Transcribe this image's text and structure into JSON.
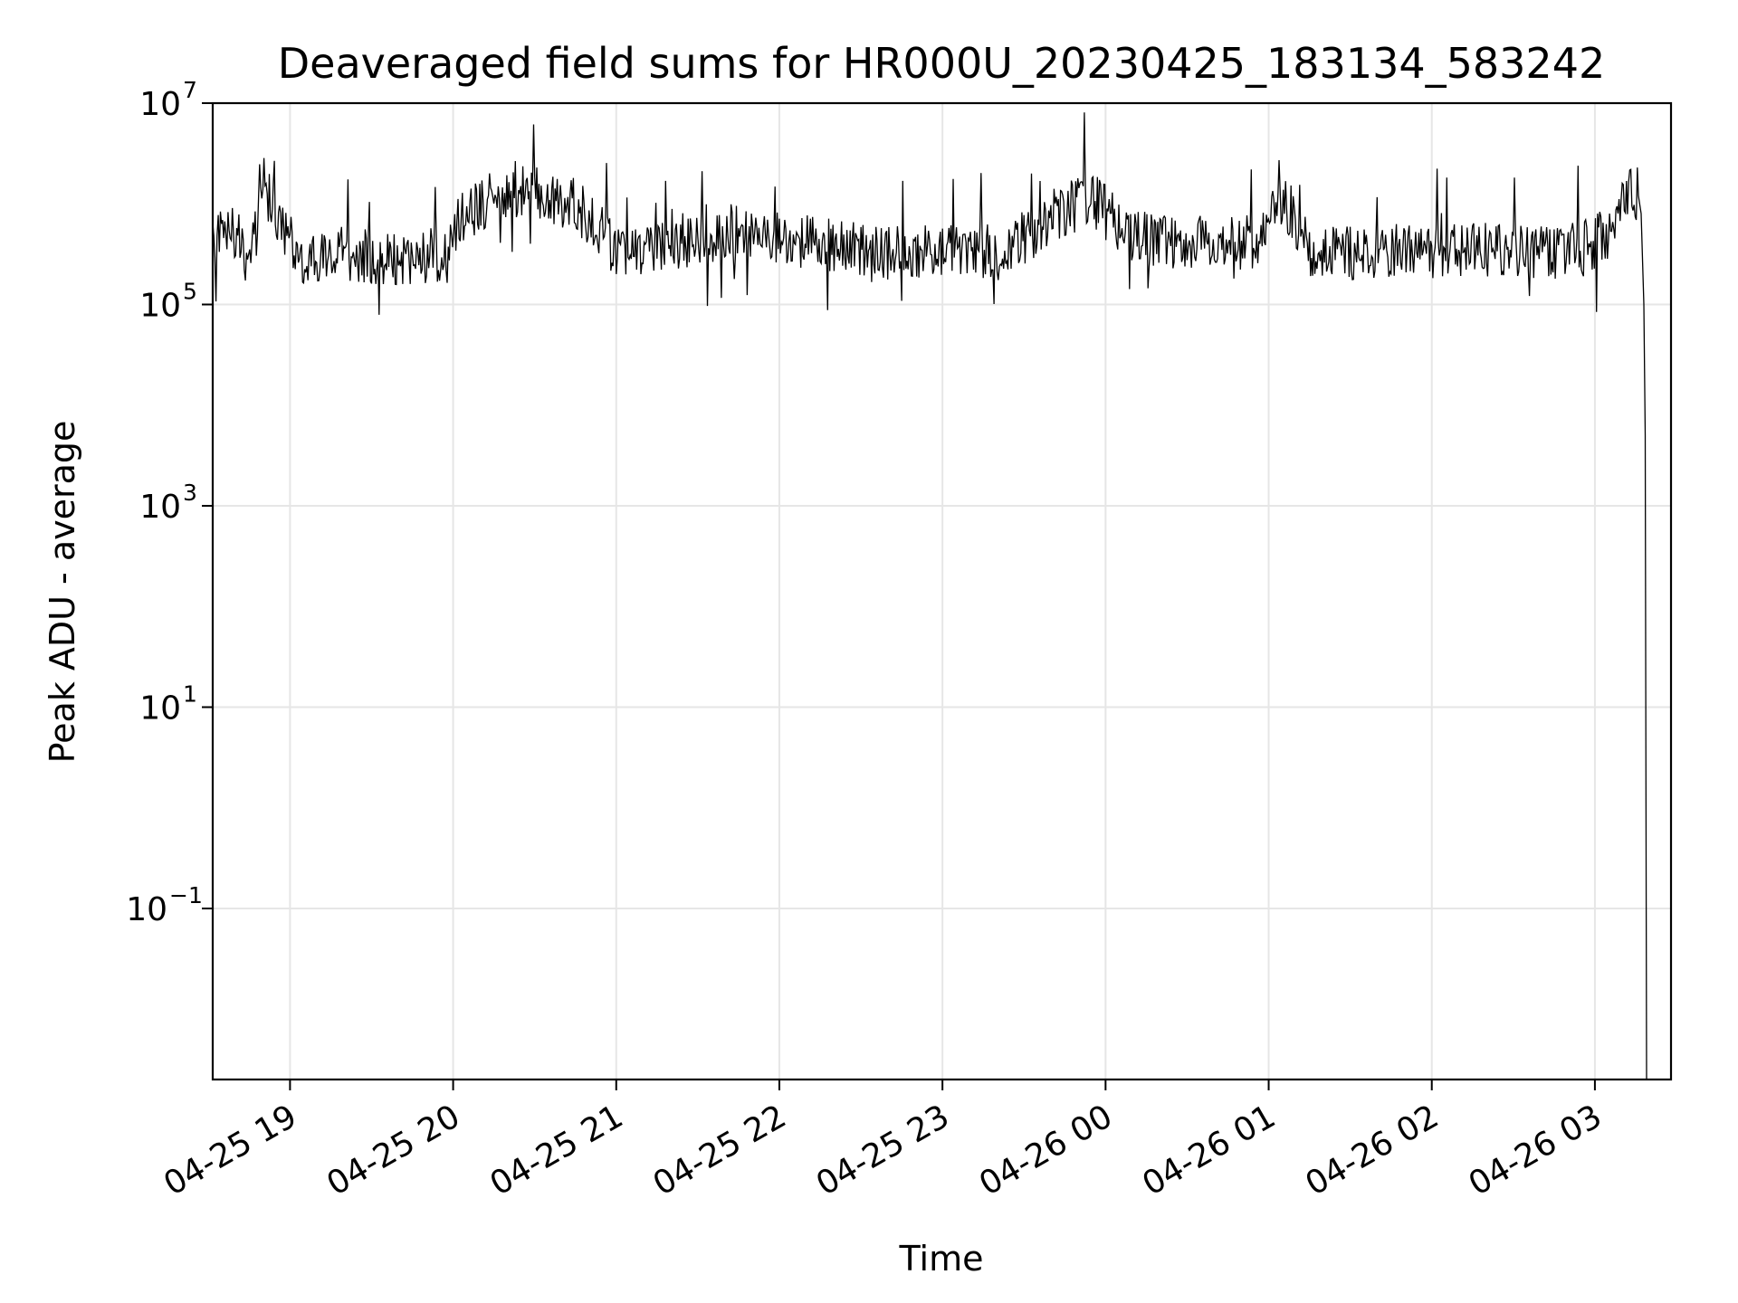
{
  "chart_data": {
    "type": "line",
    "title": "Deaveraged field sums for HR000U_20230425_183134_583242",
    "xlabel": "Time",
    "ylabel": "Peak ADU - average",
    "yscale": "log",
    "ylim": [
      0.002,
      10000000
    ],
    "xlim": [
      "2023-04-25 18:31:34",
      "2023-04-26 03:28:00"
    ],
    "grid": true,
    "x_ticks": [
      {
        "value": "2023-04-25 19:00",
        "label": "04-25 19"
      },
      {
        "value": "2023-04-25 20:00",
        "label": "04-25 20"
      },
      {
        "value": "2023-04-25 21:00",
        "label": "04-25 21"
      },
      {
        "value": "2023-04-25 22:00",
        "label": "04-25 22"
      },
      {
        "value": "2023-04-25 23:00",
        "label": "04-25 23"
      },
      {
        "value": "2023-04-26 00:00",
        "label": "04-26 00"
      },
      {
        "value": "2023-04-26 01:00",
        "label": "04-26 01"
      },
      {
        "value": "2023-04-26 02:00",
        "label": "04-26 02"
      },
      {
        "value": "2023-04-26 03:00",
        "label": "04-26 03"
      }
    ],
    "y_ticks": [
      {
        "value": 10000000,
        "base": "10",
        "exp": "7"
      },
      {
        "value": 100000,
        "base": "10",
        "exp": "5"
      },
      {
        "value": 1000,
        "base": "10",
        "exp": "3"
      },
      {
        "value": 10,
        "base": "10",
        "exp": "1"
      },
      {
        "value": 0.1,
        "base": "10",
        "exp": "−1"
      }
    ],
    "series": [
      {
        "color": "#000000",
        "x": [
          "2023-04-25 18:31:34",
          "2023-04-25 18:36",
          "2023-04-25 18:42",
          "2023-04-25 18:44",
          "2023-04-25 18:46",
          "2023-04-25 18:48",
          "2023-04-25 18:50",
          "2023-04-25 18:52",
          "2023-04-25 18:55",
          "2023-04-25 19:00",
          "2023-04-25 19:05",
          "2023-04-25 19:15",
          "2023-04-25 19:30",
          "2023-04-25 19:45",
          "2023-04-25 19:55",
          "2023-04-25 20:05",
          "2023-04-25 20:15",
          "2023-04-25 20:30",
          "2023-04-25 20:45",
          "2023-04-25 20:50",
          "2023-04-25 21:00",
          "2023-04-25 21:15",
          "2023-04-25 21:30",
          "2023-04-25 21:45",
          "2023-04-25 22:00",
          "2023-04-25 22:15",
          "2023-04-25 22:30",
          "2023-04-25 22:45",
          "2023-04-25 23:00",
          "2023-04-25 23:15",
          "2023-04-25 23:30",
          "2023-04-25 23:45",
          "2023-04-25 23:55",
          "2023-04-26 00:10",
          "2023-04-26 00:30",
          "2023-04-26 00:50",
          "2023-04-26 00:58",
          "2023-04-26 01:05",
          "2023-04-26 01:15",
          "2023-04-26 01:30",
          "2023-04-26 01:45",
          "2023-04-26 02:00",
          "2023-04-26 02:15",
          "2023-04-26 02:30",
          "2023-04-26 02:45",
          "2023-04-26 02:55",
          "2023-04-26 03:05",
          "2023-04-26 03:12",
          "2023-04-26 03:14",
          "2023-04-26 03:16",
          "2023-04-26 03:17",
          "2023-04-26 03:18",
          "2023-04-26 03:18:30",
          "2023-04-26 03:19"
        ],
        "values": [
          450000,
          520000,
          500000,
          200000,
          500000,
          500000,
          1700000,
          1100000,
          800000,
          450000,
          300000,
          320000,
          300000,
          280000,
          320000,
          800000,
          1200000,
          1300000,
          1000000,
          700000,
          350000,
          400000,
          450000,
          550000,
          450000,
          400000,
          350000,
          320000,
          330000,
          320000,
          450000,
          900000,
          1100000,
          450000,
          420000,
          400000,
          450000,
          1200000,
          350000,
          330000,
          350000,
          320000,
          350000,
          340000,
          330000,
          350000,
          500000,
          1100000,
          1400000,
          1200000,
          800000,
          100000,
          5000,
          0.002
        ]
      }
    ]
  }
}
